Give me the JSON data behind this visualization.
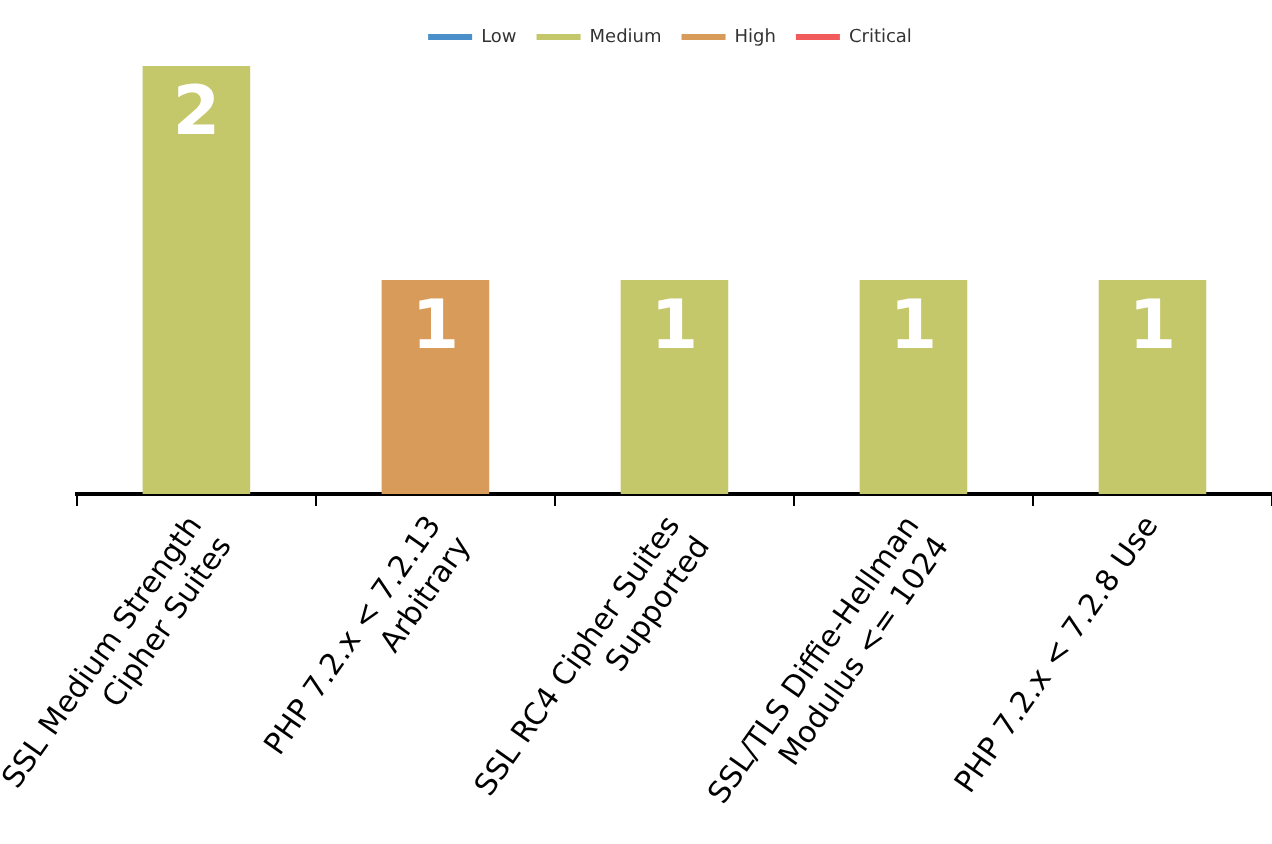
{
  "chart_data": {
    "type": "bar",
    "categories": [
      "SSL Medium Strength\nCipher Suites",
      "PHP 7.2.x < 7.2.13\nArbitrary",
      "SSL RC4 Cipher Suites\nSupported",
      "SSL/TLS Diffie-Hellman\nModulus <= 1024",
      "PHP 7.2.x < 7.2.8 Use"
    ],
    "series": [
      {
        "name": "Low",
        "color": "#4a8fc9",
        "values": [
          null,
          null,
          null,
          null,
          null
        ]
      },
      {
        "name": "Medium",
        "color": "#c4c76a",
        "values": [
          2,
          null,
          1,
          1,
          1
        ]
      },
      {
        "name": "High",
        "color": "#d99b5a",
        "values": [
          null,
          1,
          null,
          null,
          null
        ]
      },
      {
        "name": "Critical",
        "color": "#f25b5b",
        "values": [
          null,
          null,
          null,
          null,
          null
        ]
      }
    ],
    "ylim": [
      0,
      2
    ],
    "tick_labels": "x",
    "grid": false,
    "legend": "top",
    "data_labels": true
  }
}
